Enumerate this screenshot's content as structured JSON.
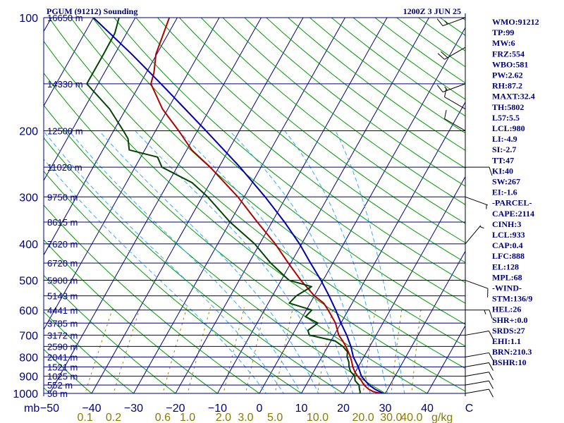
{
  "header": {
    "station": "PGUM (91212) Sounding",
    "time": "1200Z  3 JUN 25"
  },
  "indices": [
    "WMO:91212",
    "TP:99",
    "MW:6",
    "FRZ:554",
    "WBO:581",
    "PW:2.62",
    "RH:87.2",
    "MAXT:32.4",
    "TH:5802",
    "L57:5.5",
    "LCL:980",
    "LI:-4.9",
    "SI:-2.7",
    "TT:47",
    "KI:40",
    "SW:267",
    "EI:-1.6",
    "-PARCEL-",
    "CAPE:2114",
    "CINH:3",
    "LCL:933",
    "CAP:0.4",
    "LFC:888",
    "EL:128",
    "MPL:68",
    "-WIND-",
    "STM:136/9",
    "HEL:26",
    "SHR+:0.0",
    "SRDS:27",
    "EHI:1.1",
    "BRN:210.3",
    "BSHR:10"
  ],
  "colors": {
    "axis": "#00007f",
    "isobar": "#00007f",
    "isotherm": "#00007f",
    "dry_adiabat": "#009900",
    "moist_adiabat": "#33aaff",
    "mixing_ratio": "#998800",
    "temperature": "#b00000",
    "dewpoint": "#004400",
    "parcel": "#0000b0"
  },
  "chart_data": {
    "type": "line",
    "chart_kind": "skew-t log-p sounding",
    "y_axis": {
      "unit_label": "mb",
      "scale": "log",
      "range": [
        1000,
        100
      ],
      "ticks": [
        100,
        200,
        300,
        400,
        500,
        600,
        700,
        800,
        900,
        1000
      ]
    },
    "x_axis": {
      "unit": "°C (skewed)",
      "range": [
        -50,
        50
      ],
      "ticks": [
        "−50",
        "−40",
        "−30",
        "−20",
        "−10",
        "0",
        "10",
        "20",
        "30",
        "40",
        "C"
      ],
      "tick_values": [
        -50,
        -40,
        -30,
        -20,
        -10,
        0,
        10,
        20,
        30,
        40,
        50
      ]
    },
    "mixing_ratio_axis": {
      "labels": [
        "0.1",
        "0.2",
        "0.6",
        "1.0",
        "2.0",
        "3.0",
        "5.0",
        "10.0",
        "20.0",
        "30.0",
        "40.0"
      ],
      "values": [
        0.1,
        0.2,
        0.6,
        1.0,
        2.0,
        3.0,
        5.0,
        10.0,
        20.0,
        30.0,
        40.0
      ],
      "unit": "g/kg"
    },
    "height_labels": [
      {
        "p": 100,
        "label": "16650 m"
      },
      {
        "p": 150,
        "label": "14330 m"
      },
      {
        "p": 200,
        "label": "12500 m"
      },
      {
        "p": 250,
        "label": "11020 m"
      },
      {
        "p": 300,
        "label": "9750 m"
      },
      {
        "p": 350,
        "label": "8615 m"
      },
      {
        "p": 400,
        "label": "7620 m"
      },
      {
        "p": 450,
        "label": "6720 m"
      },
      {
        "p": 500,
        "label": "5900 m"
      },
      {
        "p": 550,
        "label": "5143 m"
      },
      {
        "p": 600,
        "label": "4441 m"
      },
      {
        "p": 650,
        "label": "3785 m"
      },
      {
        "p": 700,
        "label": "3172 m"
      },
      {
        "p": 750,
        "label": "2590 m"
      },
      {
        "p": 800,
        "label": "2041 m"
      },
      {
        "p": 850,
        "label": "1521 m"
      },
      {
        "p": 900,
        "label": "1025 m"
      },
      {
        "p": 950,
        "label": "552 m"
      },
      {
        "p": 1000,
        "label": "58 m"
      }
    ],
    "series": [
      {
        "key": "temperature",
        "points": [
          [
            1005,
            30.0
          ],
          [
            990,
            27.0
          ],
          [
            975,
            25.5
          ],
          [
            950,
            23.8
          ],
          [
            925,
            22.6
          ],
          [
            900,
            21.1
          ],
          [
            875,
            19.8
          ],
          [
            850,
            18.7
          ],
          [
            825,
            17.8
          ],
          [
            800,
            16.8
          ],
          [
            775,
            15.6
          ],
          [
            750,
            14.3
          ],
          [
            725,
            12.8
          ],
          [
            700,
            11.1
          ],
          [
            650,
            8.7
          ],
          [
            600,
            5.2
          ],
          [
            575,
            3.2
          ],
          [
            550,
            0.0
          ],
          [
            500,
            -5.3
          ],
          [
            450,
            -10.6
          ],
          [
            400,
            -16.3
          ],
          [
            350,
            -23.5
          ],
          [
            300,
            -31.5
          ],
          [
            250,
            -42.1
          ],
          [
            225,
            -48.8
          ],
          [
            200,
            -54.5
          ],
          [
            175,
            -61.3
          ],
          [
            150,
            -67.4
          ],
          [
            140,
            -68.2
          ],
          [
            125,
            -70.2
          ],
          [
            100,
            -71.9
          ]
        ]
      },
      {
        "key": "dewpoint",
        "points": [
          [
            1005,
            24.0
          ],
          [
            990,
            23.8
          ],
          [
            975,
            23.3
          ],
          [
            950,
            22.6
          ],
          [
            925,
            21.1
          ],
          [
            900,
            20.4
          ],
          [
            875,
            18.8
          ],
          [
            850,
            17.8
          ],
          [
            825,
            17.1
          ],
          [
            800,
            16.0
          ],
          [
            775,
            15.4
          ],
          [
            750,
            13.6
          ],
          [
            725,
            11.0
          ],
          [
            700,
            4.1
          ],
          [
            680,
            3.1
          ],
          [
            650,
            4.5
          ],
          [
            625,
            0.7
          ],
          [
            600,
            1.3
          ],
          [
            575,
            -5.0
          ],
          [
            550,
            -4.3
          ],
          [
            520,
            -1.9
          ],
          [
            500,
            -8.1
          ],
          [
            450,
            -14.8
          ],
          [
            400,
            -21.2
          ],
          [
            350,
            -30.0
          ],
          [
            300,
            -38.7
          ],
          [
            275,
            -44.3
          ],
          [
            250,
            -53.6
          ],
          [
            235,
            -56.0
          ],
          [
            225,
            -63.7
          ],
          [
            210,
            -65.5
          ],
          [
            200,
            -67.7
          ],
          [
            175,
            -73.9
          ],
          [
            150,
            -82.7
          ],
          [
            125,
            -82.7
          ],
          [
            110,
            -82.8
          ],
          [
            100,
            -83.9
          ]
        ]
      },
      {
        "key": "parcel",
        "points": [
          [
            1005,
            30.0
          ],
          [
            975,
            27.0
          ],
          [
            950,
            25.0
          ],
          [
            925,
            23.5
          ],
          [
            900,
            22.0
          ],
          [
            850,
            20.0
          ],
          [
            800,
            17.5
          ],
          [
            750,
            15.5
          ],
          [
            700,
            13.0
          ],
          [
            650,
            10.0
          ],
          [
            600,
            7.0
          ],
          [
            550,
            3.5
          ],
          [
            500,
            -0.5
          ],
          [
            450,
            -5.3
          ],
          [
            400,
            -10.5
          ],
          [
            350,
            -17.0
          ],
          [
            300,
            -25.0
          ],
          [
            250,
            -35.0
          ],
          [
            200,
            -48.0
          ],
          [
            150,
            -65.0
          ],
          [
            125,
            -76.0
          ],
          [
            100,
            -90.0
          ]
        ]
      }
    ],
    "wind_barbs": [
      {
        "p": 100,
        "dir": 250,
        "spd": 15
      },
      {
        "p": 120,
        "dir": 240,
        "spd": 20
      },
      {
        "p": 150,
        "dir": 250,
        "spd": 15
      },
      {
        "p": 175,
        "dir": 300,
        "spd": 10
      },
      {
        "p": 200,
        "dir": 300,
        "spd": 10
      },
      {
        "p": 250,
        "dir": 90,
        "spd": 10
      },
      {
        "p": 300,
        "dir": 110,
        "spd": 5
      },
      {
        "p": 400,
        "dir": 40,
        "spd": 5
      },
      {
        "p": 500,
        "dir": 110,
        "spd": 10
      },
      {
        "p": 600,
        "dir": 90,
        "spd": 15
      },
      {
        "p": 700,
        "dir": 80,
        "spd": 10
      },
      {
        "p": 800,
        "dir": 80,
        "spd": 10
      },
      {
        "p": 850,
        "dir": 80,
        "spd": 10
      },
      {
        "p": 900,
        "dir": 80,
        "spd": 10
      },
      {
        "p": 950,
        "dir": 80,
        "spd": 10
      },
      {
        "p": 1000,
        "dir": 80,
        "spd": 10
      }
    ]
  }
}
